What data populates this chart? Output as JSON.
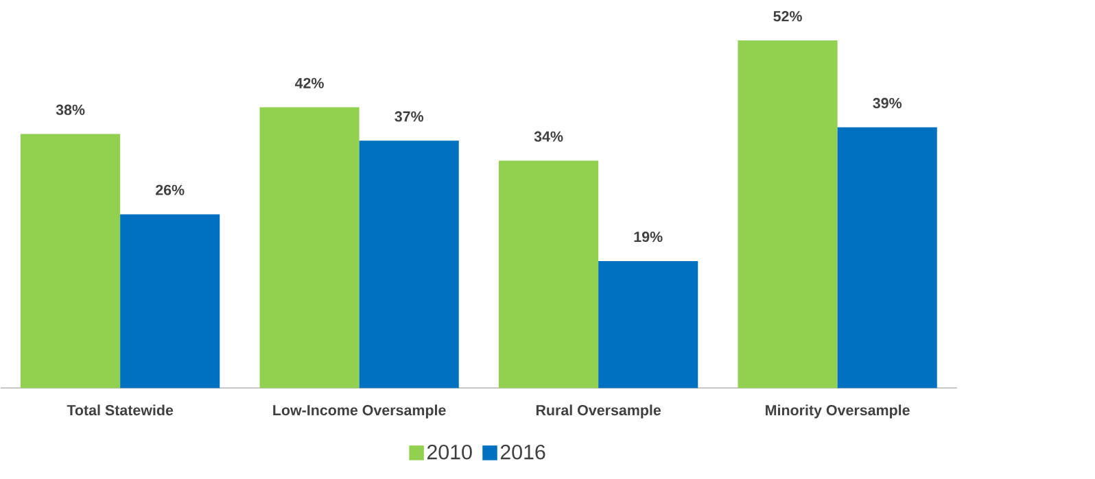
{
  "chart_data": {
    "type": "bar",
    "categories": [
      "Total Statewide",
      "Low-Income Oversample",
      "Rural Oversample",
      "Minority Oversample"
    ],
    "series": [
      {
        "name": "2010",
        "color": "#92d050",
        "values": [
          38,
          42,
          34,
          52
        ],
        "value_labels": [
          "38%",
          "42%",
          "34%",
          "52%"
        ]
      },
      {
        "name": "2016",
        "color": "#0070c0",
        "values": [
          26,
          37,
          19,
          39
        ],
        "value_labels": [
          "26%",
          "37%",
          "19%",
          "39%"
        ]
      }
    ],
    "legend": "bottom",
    "grid": false
  }
}
